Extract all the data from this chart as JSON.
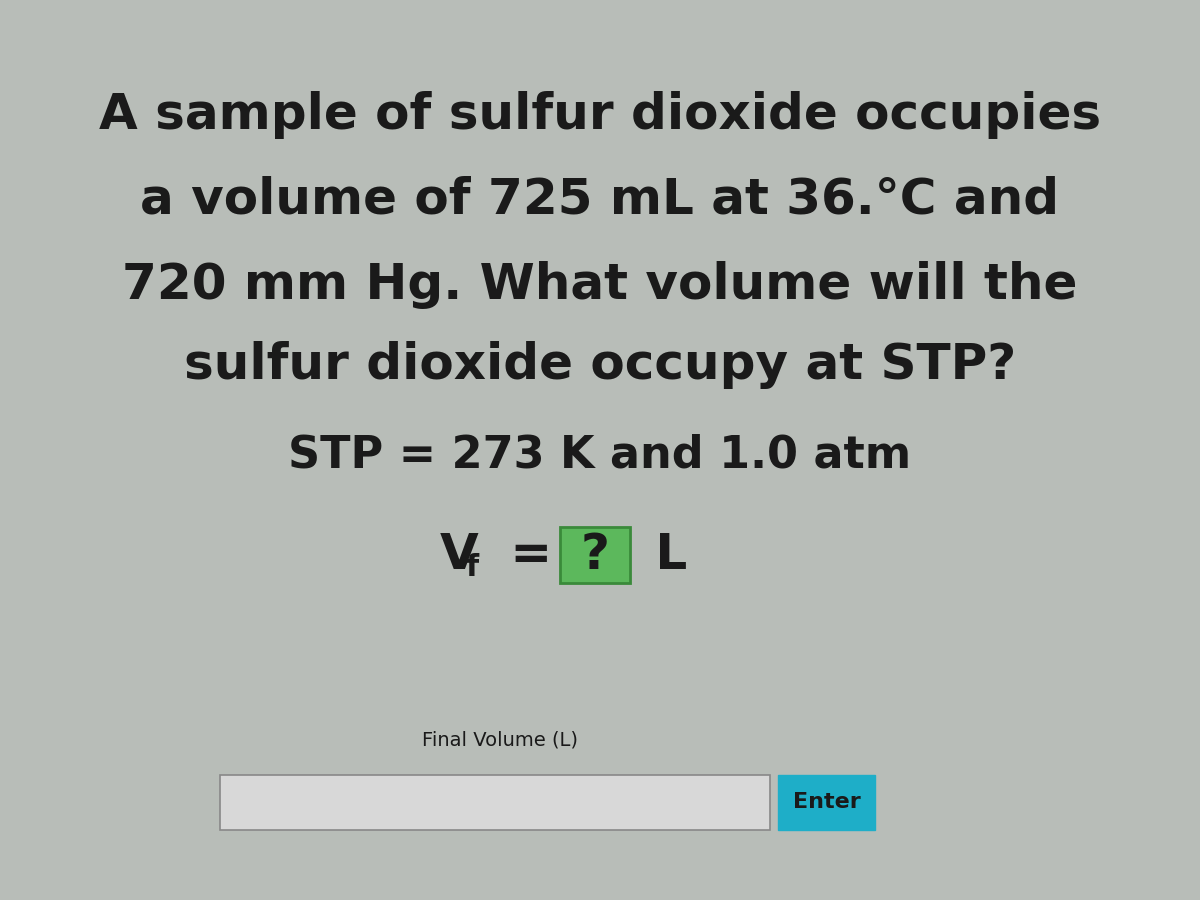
{
  "bg_color": "#b8bdb8",
  "line1": "A sample of sulfur dioxide occupies",
  "line2": "a volume of 725 mL at 36.°C and",
  "line3": "720 mm Hg. What volume will the",
  "line4": "sulfur dioxide occupy at STP?",
  "line5": "STP = 273 K and 1.0 atm",
  "question_mark": "?",
  "input_label": "Final Volume (L)",
  "enter_text": "Enter",
  "enter_bg": "#1eaec8",
  "enter_text_color": "#1a1a1a",
  "text_color": "#1a1a1a",
  "box_fill": "#5cb85c",
  "box_border": "#3a8a3a",
  "input_fill": "#d8d8d8",
  "input_border": "#888888",
  "main_fontsize": 36,
  "stp_fontsize": 32,
  "vf_fontsize": 36,
  "label_fontsize": 14,
  "enter_fontsize": 16
}
